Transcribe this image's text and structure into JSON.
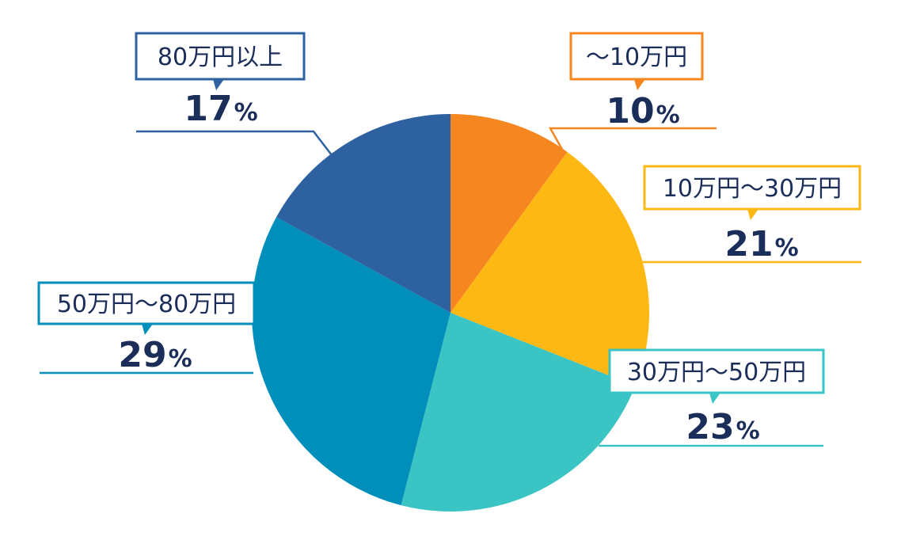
{
  "chart_data": {
    "type": "pie",
    "slices": [
      {
        "label": "～10万円",
        "value": 10,
        "percent_text": "10",
        "color": "#f6861f"
      },
      {
        "label": "10万円～30万円",
        "value": 21,
        "percent_text": "21",
        "color": "#fdb813"
      },
      {
        "label": "30万円～50万円",
        "value": 23,
        "percent_text": "23",
        "color": "#3bc4c4"
      },
      {
        "label": "50万円～80万円",
        "value": 29,
        "percent_text": "29",
        "color": "#008fba"
      },
      {
        "label": "80万円以上",
        "value": 17,
        "percent_text": "17",
        "color": "#2e61a0"
      }
    ],
    "percent_sign": "%",
    "start_angle": "12 o'clock",
    "direction": "clockwise"
  },
  "colors": {
    "label_text": "#1b2e59",
    "label_box_fill": "#ffffff"
  }
}
